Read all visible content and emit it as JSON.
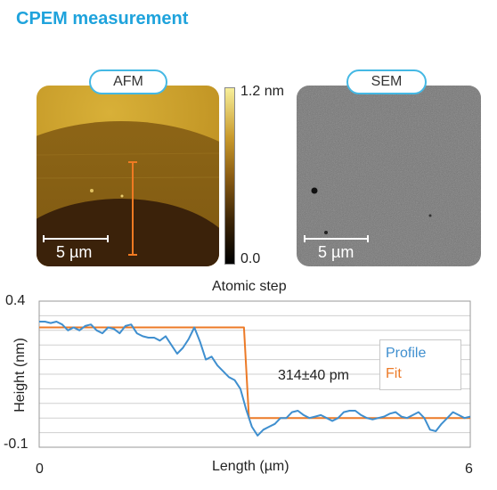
{
  "header": {
    "title": "CPEM measurement"
  },
  "afm": {
    "label": "AFM",
    "scalebar": "5 µm",
    "colorbar": {
      "max_label": "1.2 nm",
      "min_label": "0.0",
      "colors": [
        "#000000",
        "#6b4a10",
        "#c08a1c",
        "#f7ef9a"
      ]
    }
  },
  "sem": {
    "label": "SEM",
    "scalebar": "5 µm"
  },
  "chart_data": {
    "type": "line",
    "title": "Atomic step",
    "xlabel": "Length (µm)",
    "ylabel": "Height (nm)",
    "xlim": [
      0,
      6
    ],
    "ylim": [
      -0.1,
      0.4
    ],
    "x_tick_labels": [
      "0",
      "6"
    ],
    "y_tick_labels": [
      "0.4",
      "-0.1"
    ],
    "grid": true,
    "legend": {
      "placement": "right",
      "entries": [
        "Profile",
        "Fit"
      ]
    },
    "annotation": "314±40 pm",
    "series": [
      {
        "name": "Profile",
        "color": "#3f8fcf",
        "x": [
          0.0,
          0.08,
          0.16,
          0.24,
          0.32,
          0.4,
          0.48,
          0.56,
          0.64,
          0.72,
          0.8,
          0.88,
          0.96,
          1.04,
          1.12,
          1.2,
          1.28,
          1.36,
          1.44,
          1.52,
          1.6,
          1.68,
          1.76,
          1.84,
          1.92,
          2.0,
          2.08,
          2.16,
          2.24,
          2.32,
          2.4,
          2.48,
          2.56,
          2.64,
          2.72,
          2.8,
          2.88,
          2.96,
          3.04,
          3.12,
          3.2,
          3.28,
          3.36,
          3.44,
          3.52,
          3.6,
          3.68,
          3.76,
          3.84,
          3.92,
          4.0,
          4.08,
          4.16,
          4.24,
          4.32,
          4.4,
          4.48,
          4.56,
          4.64,
          4.72,
          4.8,
          4.88,
          4.96,
          5.04,
          5.12,
          5.2,
          5.28,
          5.36,
          5.44,
          5.52,
          5.6,
          5.68,
          5.76,
          5.84,
          5.92,
          6.0
        ],
        "y": [
          0.33,
          0.33,
          0.325,
          0.33,
          0.32,
          0.3,
          0.31,
          0.3,
          0.315,
          0.32,
          0.3,
          0.29,
          0.31,
          0.305,
          0.29,
          0.315,
          0.32,
          0.29,
          0.28,
          0.275,
          0.275,
          0.265,
          0.28,
          0.25,
          0.22,
          0.24,
          0.27,
          0.31,
          0.26,
          0.2,
          0.21,
          0.18,
          0.16,
          0.14,
          0.13,
          0.1,
          0.03,
          -0.03,
          -0.06,
          -0.04,
          -0.03,
          -0.02,
          0.0,
          0.0,
          0.02,
          0.025,
          0.01,
          0.0,
          0.005,
          0.01,
          0.0,
          -0.01,
          0.0,
          0.02,
          0.025,
          0.025,
          0.01,
          0.0,
          -0.005,
          0.0,
          0.005,
          0.015,
          0.02,
          0.005,
          0.0,
          0.01,
          0.02,
          0.0,
          -0.04,
          -0.045,
          -0.02,
          0.0,
          0.02,
          0.01,
          0.0,
          0.005
        ]
      },
      {
        "name": "Fit",
        "color": "#ec7a27",
        "x": [
          0,
          2.85,
          2.85,
          2.92,
          6
        ],
        "y": [
          0.31,
          0.31,
          0.31,
          0.0,
          0.0
        ]
      }
    ]
  }
}
